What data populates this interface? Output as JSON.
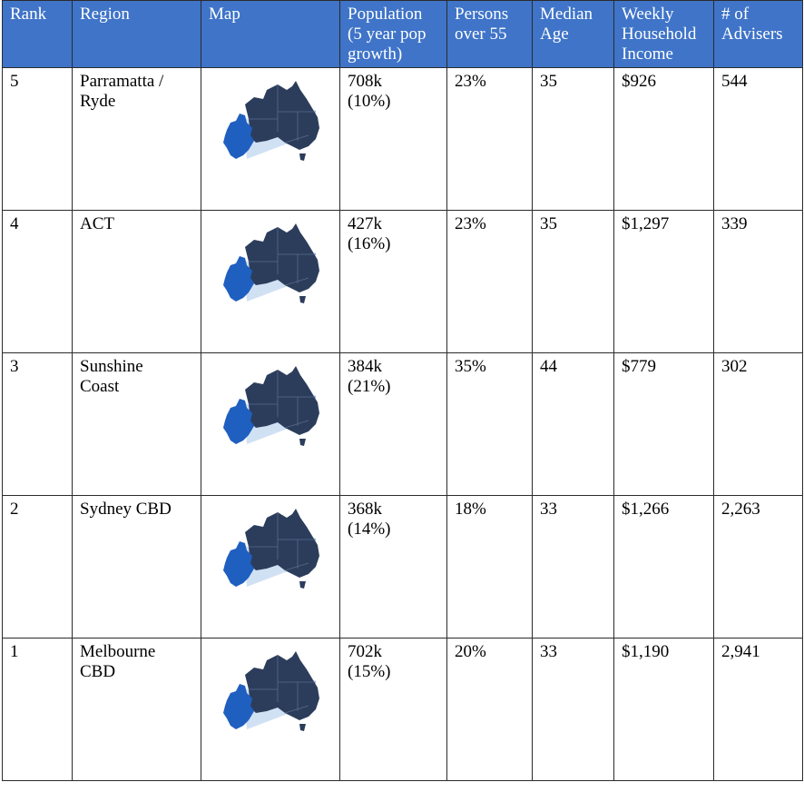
{
  "table": {
    "headers": {
      "rank": "Rank",
      "region": "Region",
      "map": "Map",
      "population": [
        "Population",
        "(5 year pop",
        "growth)"
      ],
      "persons_over_55": [
        "Persons",
        "over 55"
      ],
      "median_age": [
        "Median",
        "Age"
      ],
      "weekly_income": [
        "Weekly",
        "Household",
        "Income"
      ],
      "advisers": [
        "# of",
        "Advisers"
      ]
    },
    "rows": [
      {
        "rank": "5",
        "region": [
          "Parramatta /",
          "Ryde"
        ],
        "map": "australia-map-icon",
        "population": [
          "708k",
          "(10%)"
        ],
        "persons_over_55": "23%",
        "median_age": "35",
        "weekly_income": "$926",
        "advisers": "544"
      },
      {
        "rank": "4",
        "region": [
          "ACT"
        ],
        "map": "australia-map-icon",
        "population": [
          "427k",
          "(16%)"
        ],
        "persons_over_55": "23%",
        "median_age": "35",
        "weekly_income": "$1,297",
        "advisers": "339"
      },
      {
        "rank": "3",
        "region": [
          "Sunshine",
          "Coast"
        ],
        "map": "australia-map-icon",
        "population": [
          "384k",
          "(21%)"
        ],
        "persons_over_55": "35%",
        "median_age": "44",
        "weekly_income": "$779",
        "advisers": "302"
      },
      {
        "rank": "2",
        "region": [
          "Sydney CBD"
        ],
        "map": "australia-map-icon",
        "population": [
          "368k",
          "(14%)"
        ],
        "persons_over_55": "18%",
        "median_age": "33",
        "weekly_income": "$1,266",
        "advisers": "2,263"
      },
      {
        "rank": "1",
        "region": [
          "Melbourne",
          "CBD"
        ],
        "map": "australia-map-icon",
        "population": [
          "702k",
          "(15%)"
        ],
        "persons_over_55": "20%",
        "median_age": "33",
        "weekly_income": "$1,190",
        "advisers": "2,941"
      }
    ]
  },
  "colors": {
    "header_background": "#3f74c8",
    "header_text": "#ffffff",
    "map_dark": "#2c3d5c",
    "map_highlight": "#1f5fc0",
    "map_callout": "#c9dcf2"
  }
}
